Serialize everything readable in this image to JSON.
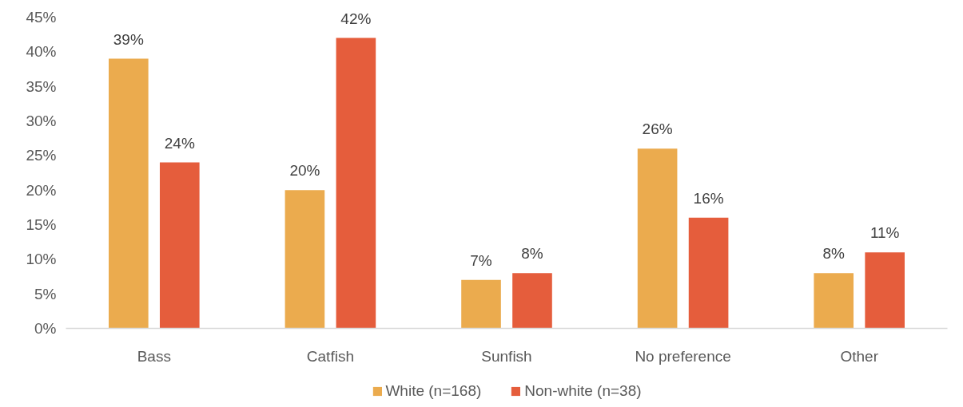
{
  "chart_data": {
    "type": "bar",
    "categories": [
      "Bass",
      "Catfish",
      "Sunfish",
      "No preference",
      "Other"
    ],
    "series": [
      {
        "name": "White (n=168)",
        "color": "#ebab4e",
        "values": [
          39,
          20,
          7,
          26,
          8
        ],
        "value_labels": [
          "39%",
          "20%",
          "7%",
          "26%",
          "8%"
        ]
      },
      {
        "name": "Non-white (n=38)",
        "color": "#e55d3c",
        "values": [
          24,
          42,
          8,
          16,
          11
        ],
        "value_labels": [
          "24%",
          "42%",
          "8%",
          "16%",
          "11%"
        ]
      }
    ],
    "ylim": [
      0,
      45
    ],
    "yticks": [
      {
        "value": 0,
        "label": "0%"
      },
      {
        "value": 5,
        "label": "5%"
      },
      {
        "value": 10,
        "label": "10%"
      },
      {
        "value": 15,
        "label": "15%"
      },
      {
        "value": 20,
        "label": "20%"
      },
      {
        "value": 25,
        "label": "25%"
      },
      {
        "value": 30,
        "label": "30%"
      },
      {
        "value": 35,
        "label": "35%"
      },
      {
        "value": 40,
        "label": "40%"
      },
      {
        "value": 45,
        "label": "45%"
      }
    ],
    "legend": "bottom"
  }
}
